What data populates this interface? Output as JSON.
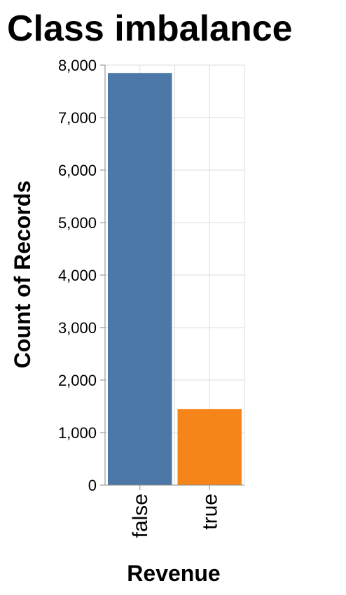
{
  "chart_data": {
    "type": "bar",
    "title": "Class imbalance",
    "xlabel": "Revenue",
    "ylabel": "Count of Records",
    "categories": [
      "false",
      "true"
    ],
    "values": [
      7850,
      1450
    ],
    "ylim": [
      0,
      8000
    ],
    "yticks": [
      0,
      1000,
      2000,
      3000,
      4000,
      5000,
      6000,
      7000,
      8000
    ],
    "ytick_labels": [
      "0",
      "1,000",
      "2,000",
      "3,000",
      "4,000",
      "5,000",
      "6,000",
      "7,000",
      "8,000"
    ],
    "colors": [
      "#4c78a8",
      "#f58518"
    ],
    "grid": true,
    "legend": "none"
  }
}
